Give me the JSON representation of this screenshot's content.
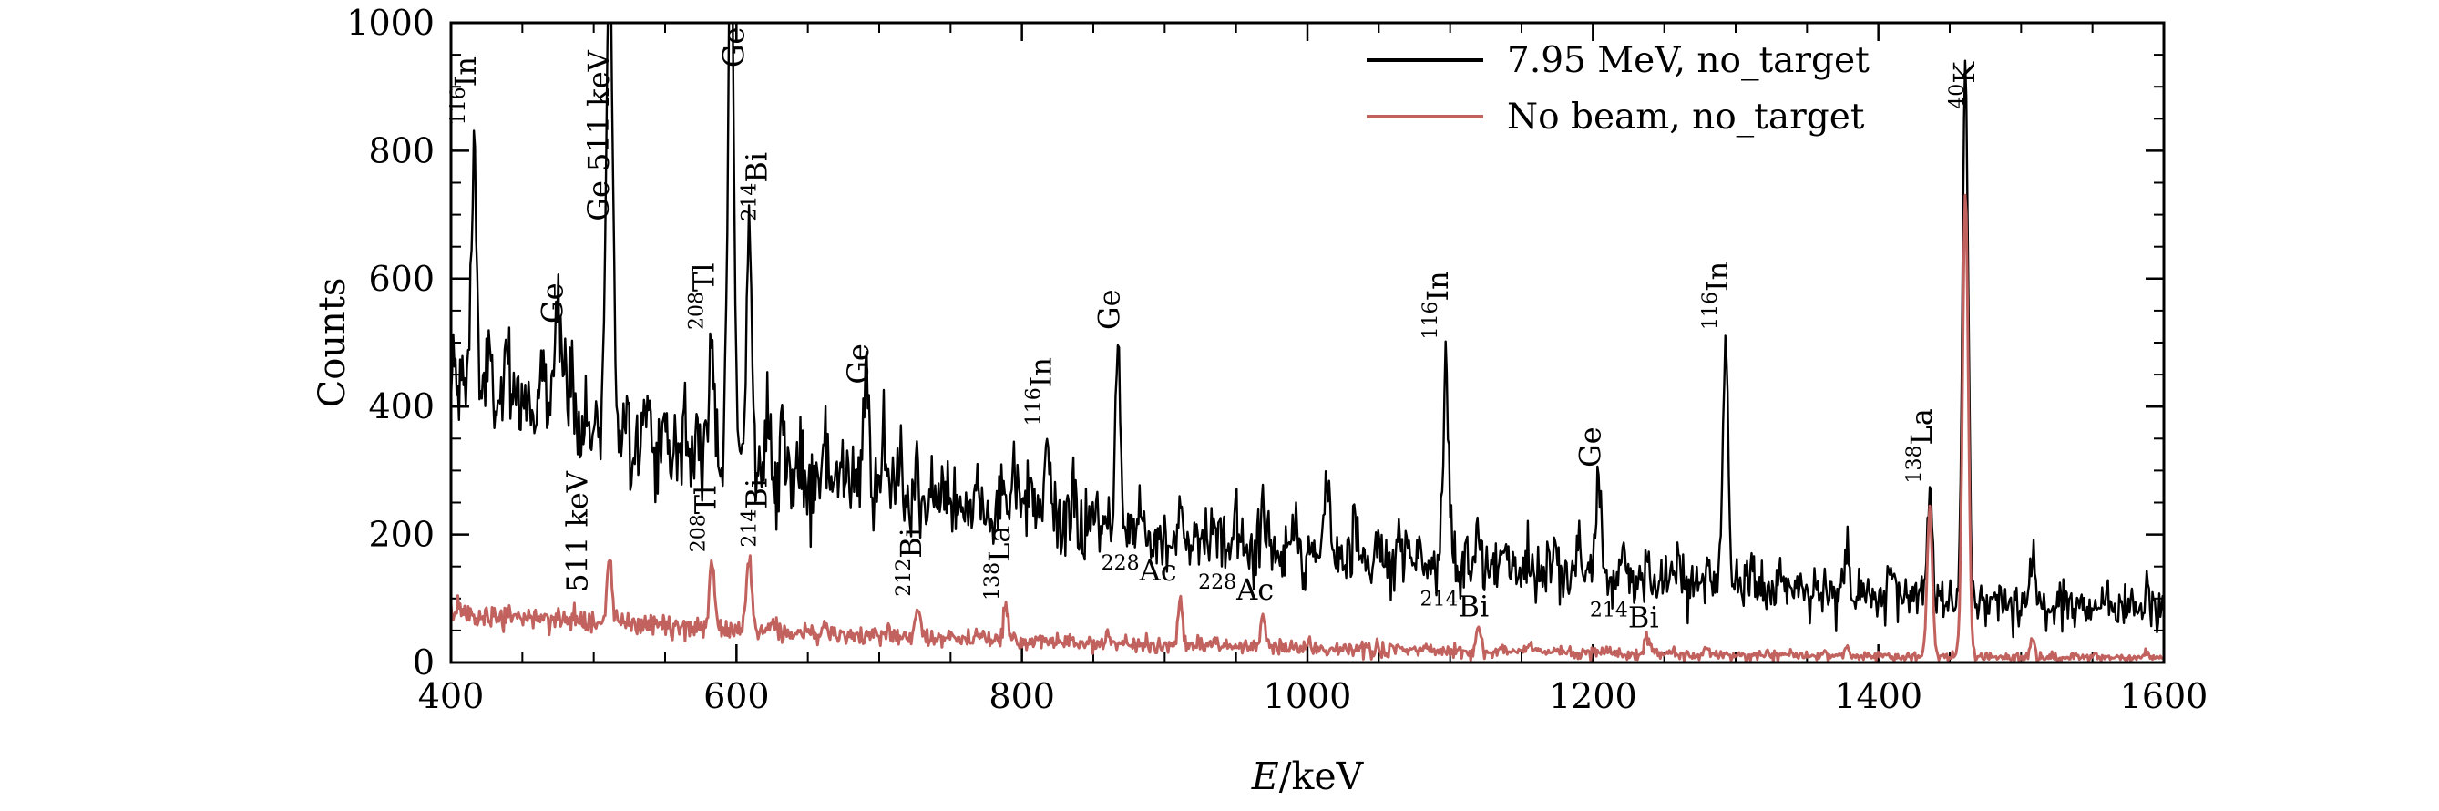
{
  "chart_data": {
    "type": "line",
    "title": "",
    "xlabel_var": "E",
    "xlabel_unit": "/keV",
    "ylabel": "Counts",
    "xlim": [
      400,
      1600
    ],
    "ylim": [
      0,
      1000
    ],
    "x_ticks": [
      400,
      600,
      800,
      1000,
      1200,
      1400,
      1600
    ],
    "y_ticks": [
      0,
      200,
      400,
      600,
      800,
      1000
    ],
    "x_minor_step": 50,
    "y_minor_step": 50,
    "grid": false,
    "legend_position": "upper right",
    "legend": [
      {
        "label": "7.95 MeV, no_target",
        "color": "#000000"
      },
      {
        "label": "No beam, no_target",
        "color": "#c1625f"
      }
    ],
    "series": [
      {
        "name": "7.95 MeV, no_target",
        "color": "#000000",
        "noise_coeff": 1.9,
        "baseline": {
          "x": [
            400,
            450,
            500,
            550,
            600,
            650,
            700,
            750,
            800,
            850,
            900,
            950,
            1000,
            1050,
            1100,
            1150,
            1200,
            1250,
            1300,
            1350,
            1400,
            1450,
            1500,
            1550,
            1600
          ],
          "y": [
            440,
            395,
            360,
            330,
            308,
            282,
            260,
            242,
            225,
            210,
            196,
            184,
            172,
            162,
            152,
            143,
            134,
            126,
            118,
            111,
            104,
            98,
            93,
            89,
            86
          ]
        },
        "peaks": [
          {
            "center": 416,
            "amp": 390,
            "sigma": 1.8
          },
          {
            "center": 427,
            "amp": 60,
            "sigma": 1.5
          },
          {
            "center": 439,
            "amp": 55,
            "sigma": 1.5
          },
          {
            "center": 452,
            "amp": 45,
            "sigma": 1.5
          },
          {
            "center": 463,
            "amp": 60,
            "sigma": 1.8
          },
          {
            "center": 477,
            "amp": 120,
            "sigma": 4.5
          },
          {
            "center": 475,
            "amp": 70,
            "sigma": 1.8
          },
          {
            "center": 484,
            "amp": 60,
            "sigma": 1.8
          },
          {
            "center": 511,
            "amp": 790,
            "sigma": 2.2
          },
          {
            "center": 523,
            "amp": 85,
            "sigma": 1.5
          },
          {
            "center": 537,
            "amp": 75,
            "sigma": 1.5
          },
          {
            "center": 549,
            "amp": 60,
            "sigma": 1.5
          },
          {
            "center": 563,
            "amp": 55,
            "sigma": 1.5
          },
          {
            "center": 572,
            "amp": 60,
            "sigma": 1.5
          },
          {
            "center": 583,
            "amp": 175,
            "sigma": 1.8
          },
          {
            "center": 596,
            "amp": 920,
            "sigma": 2.0
          },
          {
            "center": 609,
            "amp": 400,
            "sigma": 1.8
          },
          {
            "center": 622,
            "amp": 70,
            "sigma": 1.5
          },
          {
            "center": 632,
            "amp": 90,
            "sigma": 1.5
          },
          {
            "center": 645,
            "amp": 80,
            "sigma": 1.5
          },
          {
            "center": 662,
            "amp": 75,
            "sigma": 1.5
          },
          {
            "center": 678,
            "amp": 50,
            "sigma": 1.5
          },
          {
            "center": 691,
            "amp": 165,
            "sigma": 2.2
          },
          {
            "center": 703,
            "amp": 90,
            "sigma": 1.5
          },
          {
            "center": 715,
            "amp": 50,
            "sigma": 1.5
          },
          {
            "center": 727,
            "amp": 65,
            "sigma": 1.5
          },
          {
            "center": 745,
            "amp": 40,
            "sigma": 1.5
          },
          {
            "center": 768,
            "amp": 50,
            "sigma": 1.5
          },
          {
            "center": 786,
            "amp": 55,
            "sigma": 1.5
          },
          {
            "center": 795,
            "amp": 90,
            "sigma": 1.5
          },
          {
            "center": 806,
            "amp": 75,
            "sigma": 1.5
          },
          {
            "center": 818,
            "amp": 125,
            "sigma": 1.8
          },
          {
            "center": 836,
            "amp": 60,
            "sigma": 1.5
          },
          {
            "center": 852,
            "amp": 40,
            "sigma": 1.5
          },
          {
            "center": 867,
            "amp": 290,
            "sigma": 1.8
          },
          {
            "center": 884,
            "amp": 50,
            "sigma": 1.5
          },
          {
            "center": 911,
            "amp": 60,
            "sigma": 1.6
          },
          {
            "center": 934,
            "amp": 50,
            "sigma": 1.5
          },
          {
            "center": 950,
            "amp": 40,
            "sigma": 1.5
          },
          {
            "center": 969,
            "amp": 55,
            "sigma": 1.6
          },
          {
            "center": 992,
            "amp": 40,
            "sigma": 1.5
          },
          {
            "center": 1014,
            "amp": 95,
            "sigma": 1.8
          },
          {
            "center": 1033,
            "amp": 60,
            "sigma": 1.5
          },
          {
            "center": 1051,
            "amp": 50,
            "sigma": 1.5
          },
          {
            "center": 1064,
            "amp": 45,
            "sigma": 1.5
          },
          {
            "center": 1078,
            "amp": 40,
            "sigma": 1.5
          },
          {
            "center": 1097,
            "amp": 320,
            "sigma": 1.8
          },
          {
            "center": 1120,
            "amp": 55,
            "sigma": 1.6
          },
          {
            "center": 1138,
            "amp": 35,
            "sigma": 1.5
          },
          {
            "center": 1155,
            "amp": 40,
            "sigma": 1.5
          },
          {
            "center": 1173,
            "amp": 40,
            "sigma": 1.5
          },
          {
            "center": 1190,
            "amp": 35,
            "sigma": 1.5
          },
          {
            "center": 1204,
            "amp": 150,
            "sigma": 2.0
          },
          {
            "center": 1222,
            "amp": 35,
            "sigma": 1.5
          },
          {
            "center": 1238,
            "amp": 45,
            "sigma": 1.5
          },
          {
            "center": 1260,
            "amp": 30,
            "sigma": 1.5
          },
          {
            "center": 1281,
            "amp": 35,
            "sigma": 1.5
          },
          {
            "center": 1293,
            "amp": 390,
            "sigma": 1.8
          },
          {
            "center": 1312,
            "amp": 30,
            "sigma": 1.5
          },
          {
            "center": 1332,
            "amp": 35,
            "sigma": 1.5
          },
          {
            "center": 1356,
            "amp": 30,
            "sigma": 1.5
          },
          {
            "center": 1378,
            "amp": 70,
            "sigma": 1.6
          },
          {
            "center": 1408,
            "amp": 40,
            "sigma": 1.5
          },
          {
            "center": 1436,
            "amp": 155,
            "sigma": 1.8
          },
          {
            "center": 1461,
            "amp": 845,
            "sigma": 2.0
          },
          {
            "center": 1480,
            "amp": 30,
            "sigma": 1.5
          },
          {
            "center": 1508,
            "amp": 75,
            "sigma": 1.6
          },
          {
            "center": 1530,
            "amp": 25,
            "sigma": 1.5
          },
          {
            "center": 1560,
            "amp": 25,
            "sigma": 1.5
          },
          {
            "center": 1588,
            "amp": 35,
            "sigma": 1.5
          }
        ]
      },
      {
        "name": "No beam, no_target",
        "color": "#c1625f",
        "noise_coeff": 1.2,
        "baseline": {
          "x": [
            400,
            500,
            600,
            700,
            800,
            900,
            1000,
            1100,
            1200,
            1300,
            1400,
            1500,
            1600
          ],
          "y": [
            78,
            64,
            52,
            42,
            33,
            27,
            22,
            18,
            15,
            12,
            10,
            8,
            7
          ]
        },
        "peaks": [
          {
            "center": 511,
            "amp": 95,
            "sigma": 1.8
          },
          {
            "center": 583,
            "amp": 100,
            "sigma": 1.8
          },
          {
            "center": 609,
            "amp": 118,
            "sigma": 1.8
          },
          {
            "center": 662,
            "amp": 15,
            "sigma": 1.5
          },
          {
            "center": 727,
            "amp": 50,
            "sigma": 1.6
          },
          {
            "center": 768,
            "amp": 12,
            "sigma": 1.5
          },
          {
            "center": 789,
            "amp": 52,
            "sigma": 1.6
          },
          {
            "center": 835,
            "amp": 12,
            "sigma": 1.5
          },
          {
            "center": 860,
            "amp": 14,
            "sigma": 1.5
          },
          {
            "center": 911,
            "amp": 68,
            "sigma": 1.6
          },
          {
            "center": 934,
            "amp": 14,
            "sigma": 1.5
          },
          {
            "center": 969,
            "amp": 50,
            "sigma": 1.6
          },
          {
            "center": 1001,
            "amp": 10,
            "sigma": 1.5
          },
          {
            "center": 1063,
            "amp": 10,
            "sigma": 1.5
          },
          {
            "center": 1120,
            "amp": 40,
            "sigma": 1.6
          },
          {
            "center": 1155,
            "amp": 12,
            "sigma": 1.5
          },
          {
            "center": 1238,
            "amp": 30,
            "sigma": 1.8
          },
          {
            "center": 1281,
            "amp": 10,
            "sigma": 1.5
          },
          {
            "center": 1378,
            "amp": 14,
            "sigma": 1.5
          },
          {
            "center": 1436,
            "amp": 235,
            "sigma": 1.8
          },
          {
            "center": 1461,
            "amp": 725,
            "sigma": 2.0
          },
          {
            "center": 1508,
            "amp": 28,
            "sigma": 1.5
          },
          {
            "center": 1588,
            "amp": 12,
            "sigma": 1.5
          }
        ]
      }
    ],
    "annotations": [
      {
        "sup": "116",
        "main": "In",
        "x": 409,
        "y": 840,
        "rotated": true,
        "series": 0
      },
      {
        "sup": "",
        "main": "Ge",
        "x": 470,
        "y": 530,
        "rotated": true,
        "series": 0
      },
      {
        "sup": "",
        "main": "Ge 511 keV",
        "x": 502,
        "y": 690,
        "rotated": true,
        "series": 0
      },
      {
        "sup": "208",
        "main": "Tl",
        "x": 576,
        "y": 520,
        "rotated": true,
        "series": 0
      },
      {
        "sup": "",
        "main": "Ge",
        "x": 597,
        "y": 930,
        "rotated": true,
        "series": 0
      },
      {
        "sup": "214",
        "main": "Bi",
        "x": 613,
        "y": 690,
        "rotated": true,
        "series": 0
      },
      {
        "sup": "",
        "main": "Ge",
        "x": 684,
        "y": 435,
        "rotated": true,
        "series": 0
      },
      {
        "sup": "116",
        "main": "In",
        "x": 812,
        "y": 370,
        "rotated": true,
        "series": 0
      },
      {
        "sup": "",
        "main": "Ge",
        "x": 860,
        "y": 520,
        "rotated": true,
        "series": 0
      },
      {
        "sup": "116",
        "main": "In",
        "x": 1090,
        "y": 505,
        "rotated": true,
        "series": 0
      },
      {
        "sup": "",
        "main": "Ge",
        "x": 1197,
        "y": 305,
        "rotated": true,
        "series": 0
      },
      {
        "sup": "116",
        "main": "In",
        "x": 1286,
        "y": 520,
        "rotated": true,
        "series": 0
      },
      {
        "sup": "138",
        "main": "La",
        "x": 1429,
        "y": 280,
        "rotated": true,
        "series": 0
      },
      {
        "sup": "40",
        "main": "K",
        "x": 1459,
        "y": 865,
        "rotated": true,
        "series": 0
      },
      {
        "sup": "",
        "main": "511 keV",
        "x": 487,
        "y": 110,
        "rotated": true,
        "series": 1
      },
      {
        "sup": "208",
        "main": "Tl",
        "x": 577,
        "y": 172,
        "rotated": true,
        "series": 1
      },
      {
        "sup": "214",
        "main": "Bi",
        "x": 613,
        "y": 180,
        "rotated": true,
        "series": 1
      },
      {
        "sup": "212",
        "main": "Bi",
        "x": 721,
        "y": 103,
        "rotated": true,
        "series": 1
      },
      {
        "sup": "138",
        "main": "La",
        "x": 783,
        "y": 97,
        "rotated": true,
        "series": 1
      },
      {
        "sup": "228",
        "main": "Ac",
        "x": 882,
        "y": 128,
        "rotated": false,
        "series": 1
      },
      {
        "sup": "228",
        "main": "Ac",
        "x": 950,
        "y": 98,
        "rotated": false,
        "series": 1
      },
      {
        "sup": "214",
        "main": "Bi",
        "x": 1103,
        "y": 72,
        "rotated": false,
        "series": 1
      },
      {
        "sup": "214",
        "main": "Bi",
        "x": 1222,
        "y": 55,
        "rotated": false,
        "series": 1
      }
    ]
  }
}
